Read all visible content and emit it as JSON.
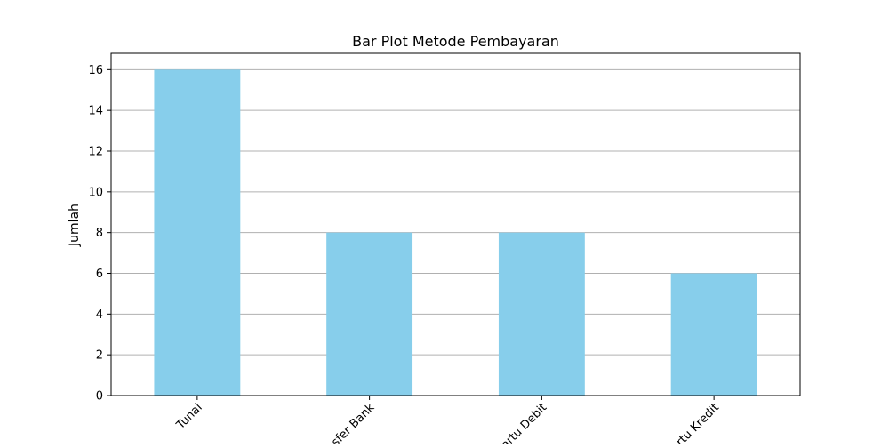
{
  "chart_data": {
    "type": "bar",
    "title": "Bar Plot Metode Pembayaran",
    "xlabel": "",
    "ylabel": "Jumlah",
    "categories": [
      "Tunai",
      "Transfer Bank",
      "Kartu Debit",
      "Kartu Kredit"
    ],
    "values": [
      16,
      8,
      8,
      6
    ],
    "ylim": [
      0,
      16.8
    ],
    "yticks": [
      0,
      2,
      4,
      6,
      8,
      10,
      12,
      14,
      16
    ],
    "ytick_labels": [
      "0",
      "2",
      "4",
      "6",
      "8",
      "10",
      "12",
      "14",
      "16"
    ],
    "grid": "y-major",
    "bar_color": "#87CEEB",
    "grid_color": "#b0b0b0",
    "xtick_rotation_deg": 45
  }
}
